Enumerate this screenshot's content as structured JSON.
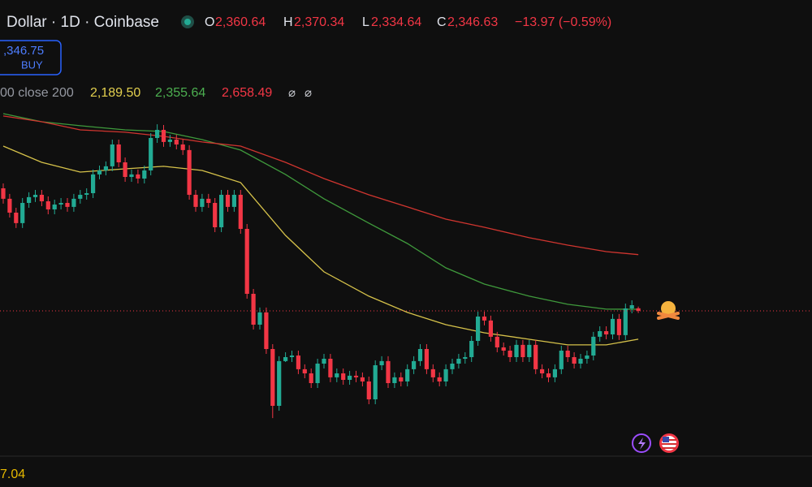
{
  "chart_data": {
    "type": "candlestick",
    "title": "Dollar · 1D · Coinbase",
    "ohlc_labels": {
      "open_key": "O",
      "open": "2,360.64",
      "high_key": "H",
      "high": "2,370.34",
      "low_key": "L",
      "low": "2,334.64",
      "close_key": "C",
      "close": "2,346.63",
      "change": "−13.97 (−0.59%)"
    },
    "buy_price": ",346.75",
    "buy_label": "BUY",
    "indicator_label": "00 close 200",
    "indicator_symbols": [
      "⌀",
      "⌀"
    ],
    "bottom_label": "7.04",
    "ylim": [
      1370,
      4070
    ],
    "up_color": "#22ab94",
    "down_color": "#f23645",
    "candles": [
      [
        3026,
        3053,
        2941,
        2968
      ],
      [
        2968,
        2995,
        2864,
        2891
      ],
      [
        2891,
        2918,
        2806,
        2833
      ],
      [
        2833,
        2972,
        2806,
        2945
      ],
      [
        2945,
        3004,
        2918,
        2977
      ],
      [
        2977,
        3017,
        2950,
        2990
      ],
      [
        2990,
        3017,
        2927,
        2954
      ],
      [
        2954,
        2981,
        2882,
        2909
      ],
      [
        2909,
        2963,
        2882,
        2936
      ],
      [
        2936,
        2972,
        2909,
        2945
      ],
      [
        2945,
        2972,
        2896,
        2923
      ],
      [
        2923,
        2995,
        2896,
        2968
      ],
      [
        2968,
        3017,
        2941,
        2990
      ],
      [
        2990,
        3026,
        2963,
        2999
      ],
      [
        2999,
        3130,
        2972,
        3103
      ],
      [
        3103,
        3152,
        3076,
        3125
      ],
      [
        3125,
        3175,
        3098,
        3148
      ],
      [
        3148,
        3296,
        3121,
        3269
      ],
      [
        3269,
        3296,
        3143,
        3170
      ],
      [
        3170,
        3197,
        3062,
        3089
      ],
      [
        3089,
        3130,
        3062,
        3103
      ],
      [
        3103,
        3130,
        3053,
        3080
      ],
      [
        3080,
        3152,
        3053,
        3125
      ],
      [
        3125,
        3332,
        3098,
        3305
      ],
      [
        3305,
        3381,
        3278,
        3350
      ],
      [
        3350,
        3377,
        3256,
        3283
      ],
      [
        3283,
        3323,
        3256,
        3296
      ],
      [
        3296,
        3323,
        3242,
        3269
      ],
      [
        3269,
        3296,
        3211,
        3238
      ],
      [
        3238,
        3265,
        2963,
        2990
      ],
      [
        2990,
        3017,
        2896,
        2923
      ],
      [
        2923,
        2995,
        2896,
        2968
      ],
      [
        2968,
        2995,
        2918,
        2945
      ],
      [
        2945,
        2972,
        2783,
        2810
      ],
      [
        2810,
        3017,
        2783,
        2990
      ],
      [
        2990,
        3017,
        2896,
        2923
      ],
      [
        2923,
        3017,
        2896,
        2990
      ],
      [
        2990,
        3017,
        2774,
        2801
      ],
      [
        2801,
        2828,
        2414,
        2441
      ],
      [
        2441,
        2468,
        2243,
        2270
      ],
      [
        2270,
        2365,
        2243,
        2338
      ],
      [
        2338,
        2365,
        2108,
        2135
      ],
      [
        2135,
        2162,
        1752,
        1820
      ],
      [
        1820,
        2095,
        1793,
        2068
      ],
      [
        2068,
        2117,
        2063,
        2090
      ],
      [
        2090,
        2126,
        2063,
        2099
      ],
      [
        2099,
        2126,
        1996,
        2023
      ],
      [
        2023,
        2050,
        1973,
        2000
      ],
      [
        2000,
        2027,
        1919,
        1946
      ],
      [
        1946,
        2081,
        1919,
        2054
      ],
      [
        2054,
        2108,
        2027,
        2081
      ],
      [
        2081,
        2108,
        1951,
        1978
      ],
      [
        1978,
        2027,
        1951,
        2000
      ],
      [
        2000,
        2027,
        1937,
        1964
      ],
      [
        1964,
        2014,
        1937,
        1987
      ],
      [
        1987,
        2014,
        1951,
        1978
      ],
      [
        1978,
        2005,
        1928,
        1955
      ],
      [
        1955,
        1982,
        1829,
        1856
      ],
      [
        1856,
        2072,
        1829,
        2045
      ],
      [
        2045,
        2095,
        2018,
        2068
      ],
      [
        2068,
        2095,
        1919,
        1946
      ],
      [
        1946,
        2005,
        1919,
        1978
      ],
      [
        1978,
        2005,
        1928,
        1955
      ],
      [
        1955,
        2050,
        1928,
        2023
      ],
      [
        2023,
        2095,
        1996,
        2068
      ],
      [
        2068,
        2162,
        2041,
        2135
      ],
      [
        2135,
        2162,
        1996,
        2023
      ],
      [
        2023,
        2050,
        1951,
        1978
      ],
      [
        1978,
        2005,
        1928,
        1955
      ],
      [
        1955,
        2050,
        1928,
        2023
      ],
      [
        2023,
        2081,
        1996,
        2054
      ],
      [
        2054,
        2108,
        2027,
        2081
      ],
      [
        2081,
        2117,
        2054,
        2090
      ],
      [
        2090,
        2207,
        2063,
        2180
      ],
      [
        2180,
        2342,
        2153,
        2315
      ],
      [
        2315,
        2342,
        2266,
        2293
      ],
      [
        2293,
        2320,
        2176,
        2203
      ],
      [
        2203,
        2230,
        2117,
        2144
      ],
      [
        2144,
        2171,
        2099,
        2126
      ],
      [
        2126,
        2153,
        2063,
        2090
      ],
      [
        2090,
        2185,
        2063,
        2158
      ],
      [
        2158,
        2185,
        2063,
        2090
      ],
      [
        2090,
        2185,
        2063,
        2158
      ],
      [
        2158,
        2185,
        1996,
        2023
      ],
      [
        2023,
        2050,
        1973,
        2000
      ],
      [
        2000,
        2027,
        1951,
        1978
      ],
      [
        1978,
        2050,
        1951,
        2023
      ],
      [
        2023,
        2153,
        1996,
        2126
      ],
      [
        2126,
        2153,
        2063,
        2090
      ],
      [
        2090,
        2117,
        2027,
        2054
      ],
      [
        2054,
        2108,
        2027,
        2081
      ],
      [
        2081,
        2126,
        2054,
        2099
      ],
      [
        2099,
        2230,
        2072,
        2203
      ],
      [
        2203,
        2261,
        2176,
        2234
      ],
      [
        2234,
        2261,
        2189,
        2216
      ],
      [
        2216,
        2329,
        2189,
        2302
      ],
      [
        2302,
        2329,
        2185,
        2212
      ],
      [
        2212,
        2387,
        2185,
        2360
      ],
      [
        2360,
        2405,
        2333,
        2378
      ],
      [
        2360.64,
        2370.34,
        2334.64,
        2346.63
      ]
    ],
    "series": [
      {
        "color": "#d6c24a",
        "legend_value": "2,189.50",
        "x": [
          0,
          6,
          12,
          19,
          25,
          31,
          37,
          44,
          50,
          57,
          63,
          69,
          75,
          82,
          88,
          94,
          99
        ],
        "values": [
          3260,
          3170,
          3116,
          3134,
          3148,
          3125,
          3058,
          2765,
          2563,
          2428,
          2338,
          2270,
          2225,
          2189,
          2158,
          2158,
          2189.5
        ]
      },
      {
        "color": "#3f9a3c",
        "legend_value": "2,355.64",
        "x": [
          0,
          6,
          12,
          19,
          25,
          31,
          37,
          44,
          50,
          57,
          63,
          69,
          75,
          82,
          88,
          94,
          99
        ],
        "values": [
          3440,
          3395,
          3373,
          3350,
          3341,
          3296,
          3238,
          3103,
          2968,
          2833,
          2720,
          2585,
          2495,
          2428,
          2383,
          2356,
          2355.64
        ]
      },
      {
        "color": "#d0352f",
        "legend_value": "2,658.49",
        "x": [
          0,
          6,
          12,
          19,
          25,
          31,
          37,
          44,
          50,
          57,
          63,
          69,
          75,
          82,
          88,
          94,
          99
        ],
        "values": [
          3427,
          3395,
          3350,
          3337,
          3314,
          3283,
          3260,
          3170,
          3080,
          2990,
          2923,
          2855,
          2810,
          2752,
          2711,
          2675,
          2658.49
        ]
      }
    ]
  }
}
